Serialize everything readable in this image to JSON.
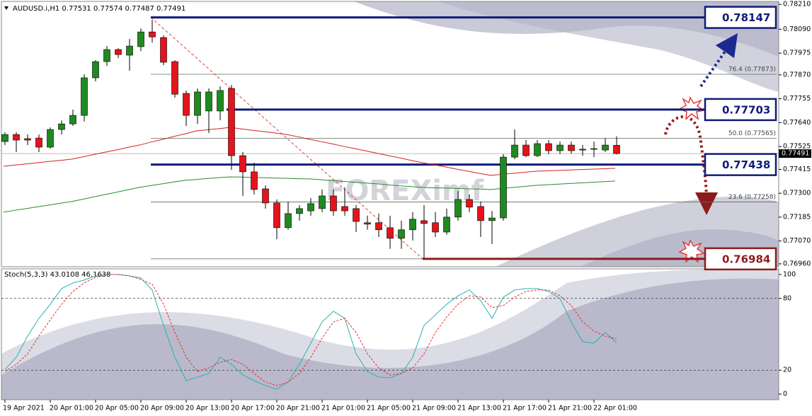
{
  "chart_data": [
    {
      "type": "candlestick",
      "title": "AUDUSD.i,H1 0.77531 0.77574 0.77487 0.77491",
      "watermark": "FOREXimf",
      "categories": [
        "19 Apr 2021",
        null,
        null,
        null,
        "20 Apr 01:00",
        null,
        null,
        null,
        "20 Apr 05:00",
        null,
        null,
        null,
        "20 Apr 09:00",
        null,
        null,
        null,
        "20 Apr 13:00",
        null,
        null,
        null,
        "20 Apr 17:00",
        null,
        null,
        null,
        "20 Apr 21:00",
        null,
        null,
        null,
        "21 Apr 01:00",
        null,
        null,
        null,
        "21 Apr 05:00",
        null,
        null,
        null,
        "21 Apr 09:00",
        null,
        null,
        null,
        "21 Apr 13:00",
        null,
        null,
        null,
        "21 Apr 17:00",
        null,
        null,
        null,
        "21 Apr 21:00",
        null,
        null,
        null,
        "22 Apr 01:00",
        null,
        null
      ],
      "open": [
        0.77549,
        0.77583,
        0.77563,
        0.77566,
        0.77522,
        0.77607,
        0.77634,
        0.77675,
        0.77856,
        0.77934,
        0.77992,
        0.77965,
        0.78006,
        0.78077,
        0.7805,
        0.77934,
        0.77781,
        0.77675,
        0.77696,
        0.77696,
        0.77805,
        0.77481,
        0.77403,
        0.77321,
        0.77253,
        0.77134,
        0.77202,
        0.77215,
        0.77226,
        0.77287,
        0.77236,
        0.77226,
        0.77158,
        0.77158,
        0.77134,
        0.77083,
        0.77124,
        0.77168,
        0.77158,
        0.77113,
        0.77185,
        0.7727,
        0.77236,
        0.77168,
        0.77181,
        0.77474,
        0.77532,
        0.77481,
        0.77539,
        0.77505,
        0.77532,
        0.77512,
        0.77512,
        0.77508,
        0.77531
      ],
      "high": [
        0.77594,
        0.77594,
        0.77583,
        0.77583,
        0.77617,
        0.77651,
        0.77703,
        0.77873,
        0.77941,
        0.78009,
        0.77999,
        0.78043,
        0.78094,
        0.78135,
        0.7806,
        0.77941,
        0.77795,
        0.77805,
        0.77805,
        0.77815,
        0.77822,
        0.77498,
        0.77447,
        0.77338,
        0.7727,
        0.7726,
        0.77243,
        0.77277,
        0.77318,
        0.77318,
        0.77328,
        0.77243,
        0.77192,
        0.77202,
        0.77192,
        0.77168,
        0.77209,
        0.77243,
        0.77209,
        0.77226,
        0.77311,
        0.77294,
        0.7726,
        0.77215,
        0.77488,
        0.77607,
        0.77556,
        0.77556,
        0.77556,
        0.77549,
        0.77549,
        0.77532,
        0.77549,
        0.77566,
        0.77574
      ],
      "low": [
        0.77532,
        0.77498,
        0.77532,
        0.77498,
        0.77515,
        0.77583,
        0.77624,
        0.77645,
        0.77839,
        0.77914,
        0.77951,
        0.7789,
        0.77985,
        0.78026,
        0.77917,
        0.7776,
        0.77624,
        0.77634,
        0.7759,
        0.77651,
        0.77413,
        0.77287,
        0.77294,
        0.77226,
        0.77079,
        0.77124,
        0.77168,
        0.77192,
        0.77209,
        0.77192,
        0.77192,
        0.77113,
        0.77124,
        0.77089,
        0.77032,
        0.77032,
        0.77072,
        0.76984,
        0.77089,
        0.771,
        0.77168,
        0.77209,
        0.77089,
        0.77055,
        0.77168,
        0.77464,
        0.77474,
        0.77474,
        0.77488,
        0.77488,
        0.77491,
        0.77481,
        0.77474,
        0.77498,
        0.77487
      ],
      "close": [
        0.77583,
        0.77556,
        0.77556,
        0.77522,
        0.77607,
        0.77634,
        0.77675,
        0.77856,
        0.77934,
        0.77992,
        0.77968,
        0.78009,
        0.78077,
        0.78053,
        0.77931,
        0.77777,
        0.77675,
        0.77788,
        0.77788,
        0.77795,
        0.77481,
        0.77403,
        0.77318,
        0.77253,
        0.77134,
        0.77202,
        0.77226,
        0.7725,
        0.77287,
        0.77215,
        0.77215,
        0.77164,
        0.77151,
        0.77124,
        0.77083,
        0.77124,
        0.77175,
        0.77154,
        0.77113,
        0.77185,
        0.7727,
        0.77233,
        0.77168,
        0.77181,
        0.77474,
        0.77532,
        0.77481,
        0.77539,
        0.77505,
        0.77532,
        0.77505,
        0.77508,
        0.77515,
        0.77532,
        0.77491
      ],
      "up_color": "#1f8a1f",
      "down_color": "#e5131b",
      "moving_averages": [
        {
          "color": "#d9201f",
          "values": [
            0.7743,
            0.77436,
            0.77441,
            0.77447,
            0.77453,
            0.77458,
            0.77464,
            0.77475,
            0.77487,
            0.77498,
            0.77509,
            0.77521,
            0.77532,
            0.77546,
            0.77559,
            0.77573,
            0.77586,
            0.776,
            0.77606,
            0.77611,
            0.77617,
            0.7761,
            0.77603,
            0.77597,
            0.7759,
            0.77583,
            0.77572,
            0.7756,
            0.77549,
            0.77538,
            0.77526,
            0.77515,
            0.77504,
            0.77492,
            0.77481,
            0.7747,
            0.77458,
            0.77447,
            0.77437,
            0.77427,
            0.77416,
            0.77406,
            0.77396,
            0.77386,
            0.77391,
            0.77396,
            0.77401,
            0.77406,
            0.77408,
            0.7741,
            0.77412,
            0.77414,
            0.77416,
            0.77418,
            0.7742
          ]
        },
        {
          "color": "#2a8c2a",
          "values": [
            0.77209,
            0.77218,
            0.77226,
            0.77235,
            0.77243,
            0.77252,
            0.7726,
            0.77271,
            0.77283,
            0.77294,
            0.77305,
            0.77317,
            0.77328,
            0.77337,
            0.77345,
            0.77354,
            0.77362,
            0.77366,
            0.77371,
            0.77375,
            0.77379,
            0.77378,
            0.77376,
            0.77375,
            0.77373,
            0.77372,
            0.7737,
            0.77369,
            0.77365,
            0.77361,
            0.77357,
            0.77353,
            0.77349,
            0.77345,
            0.7734,
            0.77336,
            0.77332,
            0.77328,
            0.77326,
            0.77325,
            0.77323,
            0.77321,
            0.7732,
            0.77318,
            0.77323,
            0.77328,
            0.77333,
            0.77338,
            0.77341,
            0.77344,
            0.77347,
            0.7735,
            0.77353,
            0.77356,
            0.77359
          ]
        }
      ],
      "ylim": [
        0.76946,
        0.78224
      ],
      "yticks": [
        {
          "value": 0.7821,
          "label": "0.78210"
        },
        {
          "value": 0.7809,
          "label": "0.78090"
        },
        0.77975,
        {
          "value": 0.7787,
          "label": "0.77870"
        },
        0.77755,
        {
          "value": 0.7764,
          "label": "0.77640"
        },
        0.77525,
        0.77415,
        {
          "value": 0.773,
          "label": "0.77300"
        },
        0.77185,
        {
          "value": 0.7707,
          "label": "0.77070"
        },
        {
          "value": 0.7696,
          "label": "0.76960"
        }
      ],
      "fibonacci": [
        {
          "value": 0.78147
        },
        {
          "value": 0.77873,
          "label": "76.4 (0.77873)"
        },
        {
          "value": 0.77565,
          "label": "50.0 (0.77565)"
        },
        {
          "value": 0.77258,
          "label": "23.6 (0.77258)"
        },
        {
          "value": 0.76984
        }
      ],
      "levels": [
        {
          "value": 0.78147,
          "color": "#0f1c78"
        },
        {
          "value": 0.77703,
          "color": "#0f1c78"
        },
        {
          "value": 0.77438,
          "color": "#0f1c78"
        },
        {
          "value": 0.76984,
          "color": "#8e1b1b"
        }
      ]
    },
    {
      "type": "line",
      "title": "Stoch(5,3,3) 43.0108 46.1638",
      "series": [
        {
          "color": "#27b3ae",
          "values": [
            20.7,
            30.8,
            48.5,
            63.3,
            75.1,
            88.2,
            92.9,
            95.3,
            98.8,
            100,
            100,
            98.8,
            97.0,
            87.0,
            57.4,
            30.8,
            11.2,
            14.2,
            17.2,
            30.8,
            24.9,
            16.0,
            11.2,
            7.1,
            4.1,
            10.1,
            24.9,
            42.6,
            60.4,
            69.2,
            63.3,
            33.7,
            18.9,
            14.2,
            13.6,
            17.2,
            30.8,
            57.4,
            66.3,
            75.1,
            82.2,
            87.0,
            78.1,
            63.3,
            81.1,
            87.0,
            88.2,
            88.2,
            85.8,
            79.9,
            60.4,
            43.8,
            42.6,
            51.5,
            43.0108
          ]
        },
        {
          "color": "#e33030",
          "dashed": true,
          "values": [
            18.9,
            24.9,
            33.7,
            48.5,
            62.1,
            75.1,
            85.8,
            92.9,
            97.6,
            100,
            100,
            98.8,
            95.9,
            91.7,
            75.1,
            51.5,
            30.8,
            18.9,
            21.9,
            26.6,
            29.0,
            24.9,
            17.2,
            10.1,
            7.1,
            10.1,
            17.2,
            30.8,
            46.7,
            60.4,
            63.3,
            51.5,
            33.7,
            21.9,
            16.0,
            17.2,
            21.9,
            33.7,
            51.5,
            64.5,
            75.1,
            82.2,
            81.1,
            72.2,
            74.0,
            81.1,
            85.8,
            87.0,
            87.0,
            82.2,
            74.0,
            60.4,
            52.7,
            48.5,
            46.1638
          ]
        }
      ],
      "ylim": [
        -4.7,
        104.7
      ],
      "yticks": [
        100,
        80,
        20,
        0
      ],
      "level_lines": [
        80,
        20
      ]
    }
  ]
}
